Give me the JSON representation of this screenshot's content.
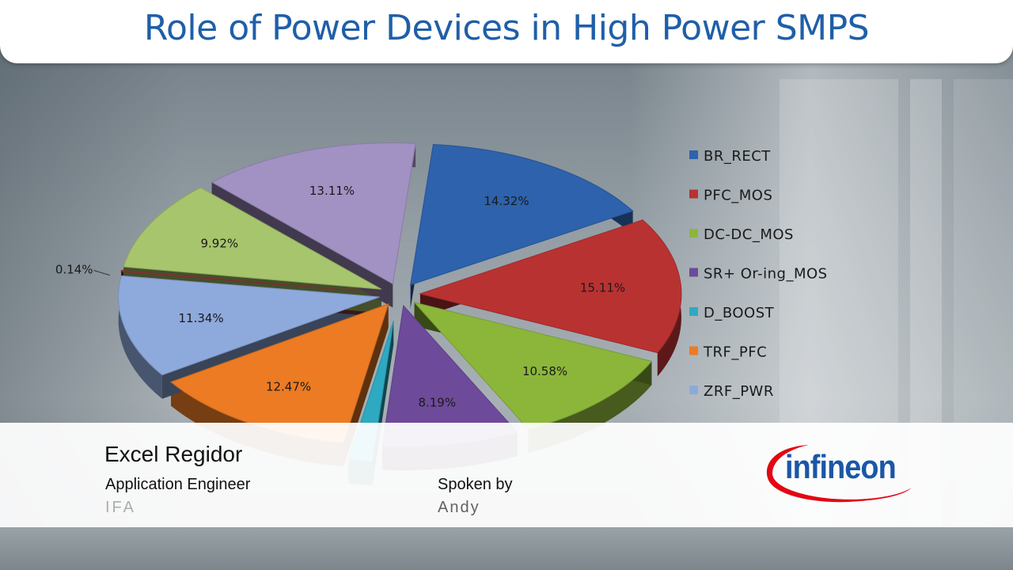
{
  "title": "Role of Power Devices in High Power SMPS",
  "chart_data": {
    "type": "pie",
    "slices": [
      {
        "name": "BR_RECT",
        "value": 14.32,
        "label": "14.32%",
        "color": "#2e62ad"
      },
      {
        "name": "PFC_MOS",
        "value": 15.11,
        "label": "15.11%",
        "color": "#b93232"
      },
      {
        "name": "DC-DC_MOS",
        "value": 10.58,
        "label": "10.58%",
        "color": "#8cb63a"
      },
      {
        "name": "SR+ Or-ing_MOS",
        "value": 8.19,
        "label": "8.19%",
        "color": "#6e4a9a"
      },
      {
        "name": "D_BOOST",
        "value": 1.4,
        "label": "",
        "color": "#2ea9c2"
      },
      {
        "name": "TRF_PFC",
        "value": 12.47,
        "label": "12.47%",
        "color": "#ec7b23"
      },
      {
        "name": "ZRF_PWR",
        "value": 11.34,
        "label": "11.34%",
        "color": "#8ea9dc"
      },
      {
        "name": "",
        "value": 0.14,
        "label": "0.14%",
        "color": "#8a3b35"
      },
      {
        "name": "",
        "value": 9.92,
        "label": "9.92%",
        "color": "#a7c56c"
      },
      {
        "name": "",
        "value": 13.11,
        "label": "13.11%",
        "color": "#a292c3"
      }
    ],
    "legend_position": "right",
    "legend": [
      {
        "name": "BR_RECT",
        "color": "#2e62ad"
      },
      {
        "name": "PFC_MOS",
        "color": "#b93232"
      },
      {
        "name": "DC-DC_MOS",
        "color": "#8cb63a"
      },
      {
        "name": "SR+ Or-ing_MOS",
        "color": "#6e4a9a"
      },
      {
        "name": "D_BOOST",
        "color": "#2ea9c2"
      },
      {
        "name": "TRF_PFC",
        "color": "#ec7b23"
      },
      {
        "name": "ZRF_PWR",
        "color": "#8ea9dc"
      }
    ]
  },
  "lower_third": {
    "name": "Excel Regidor",
    "role": "Application Engineer",
    "company": "IFA",
    "spoken_label": "Spoken by",
    "speaker": "Andy"
  },
  "logo": {
    "text": "infineon",
    "color": "#1a57a6",
    "swoosh_color": "#e30613"
  }
}
